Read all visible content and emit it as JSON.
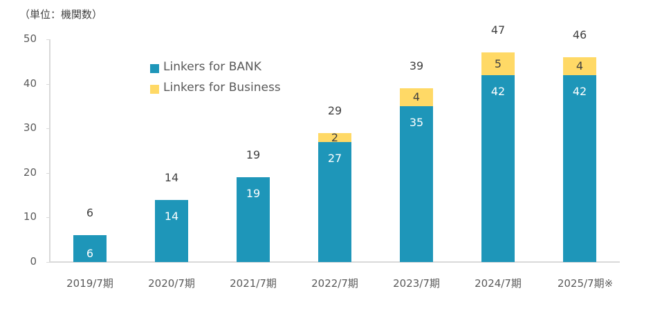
{
  "unit_label": "（単位：機関数）",
  "legend": [
    {
      "label": "Linkers for BANK",
      "color": "#1e96b9"
    },
    {
      "label": "Linkers for Business",
      "color": "#ffd966"
    }
  ],
  "y_ticks": [
    "0",
    "10",
    "20",
    "30",
    "40",
    "50"
  ],
  "chart_data": {
    "type": "bar",
    "stacked": true,
    "title": "",
    "unit": "（単位：機関数）",
    "xlabel": "",
    "ylabel": "機関数",
    "ylim": [
      0,
      50
    ],
    "yticks": [
      0,
      10,
      20,
      30,
      40,
      50
    ],
    "grid": false,
    "legend_position": "upper-left inside plot",
    "categories": [
      "2019/7期",
      "2020/7期",
      "2021/7期",
      "2022/7期",
      "2023/7期",
      "2024/7期",
      "2025/7期※"
    ],
    "series": [
      {
        "name": "Linkers for BANK",
        "color": "#1e96b9",
        "values": [
          6,
          14,
          19,
          27,
          35,
          42,
          42
        ]
      },
      {
        "name": "Linkers for Business",
        "color": "#ffd966",
        "values": [
          0,
          0,
          0,
          2,
          4,
          5,
          4
        ]
      }
    ],
    "totals": [
      6,
      14,
      19,
      29,
      39,
      47,
      46
    ]
  },
  "bars": [
    {
      "label": "2019/7期",
      "bank": 6,
      "bank_label": "6",
      "biz": 0,
      "biz_label": "",
      "total": "6"
    },
    {
      "label": "2020/7期",
      "bank": 14,
      "bank_label": "14",
      "biz": 0,
      "biz_label": "",
      "total": "14"
    },
    {
      "label": "2021/7期",
      "bank": 19,
      "bank_label": "19",
      "biz": 0,
      "biz_label": "",
      "total": "19"
    },
    {
      "label": "2022/7期",
      "bank": 27,
      "bank_label": "27",
      "biz": 2,
      "biz_label": "2",
      "total": "29"
    },
    {
      "label": "2023/7期",
      "bank": 35,
      "bank_label": "35",
      "biz": 4,
      "biz_label": "4",
      "total": "39"
    },
    {
      "label": "2024/7期",
      "bank": 42,
      "bank_label": "42",
      "biz": 5,
      "biz_label": "5",
      "total": "47"
    },
    {
      "label": "2025/7期※",
      "bank": 42,
      "bank_label": "42",
      "biz": 4,
      "biz_label": "4",
      "total": "46"
    }
  ]
}
